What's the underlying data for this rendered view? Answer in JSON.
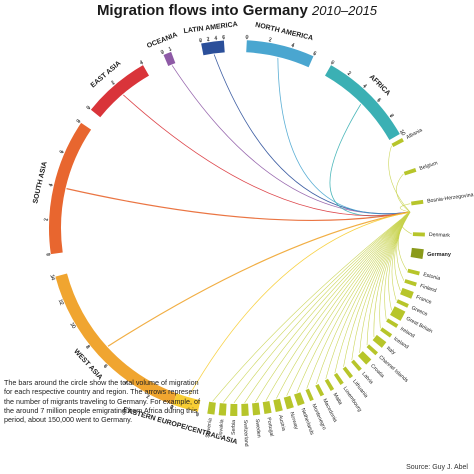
{
  "title": "Migration flows into Germany",
  "subtitle": "2010–2015",
  "note": "The bars around the circle show the total volume of migration for each respective country and region. The arrows represent the number of migrants traveling to Germany. For example, of the around 7 million people emigrating from Africa during this period, about 150,000 went to Germany.",
  "source": "Source: Guy J. Abel",
  "chart_data": {
    "type": "chord",
    "target": "Germany",
    "regions": [
      {
        "name": "OCEANIA",
        "color": "#8e5aa6",
        "ticks": [
          "0",
          "1"
        ]
      },
      {
        "name": "LATIN AMERICA",
        "color": "#2b4f9a",
        "ticks": [
          "0",
          "2",
          "4",
          "6"
        ]
      },
      {
        "name": "NORTH AMERICA",
        "color": "#4aa6d0",
        "ticks": [
          "0",
          "2",
          "4",
          "6"
        ]
      },
      {
        "name": "AFRICA",
        "color": "#3bb0b4",
        "ticks": [
          "0",
          "2",
          "4",
          "6",
          "8",
          "10"
        ]
      },
      {
        "name": "EAST ASIA",
        "color": "#d9343a",
        "ticks": [
          "0",
          "2",
          "4"
        ]
      },
      {
        "name": "SOUTH ASIA",
        "color": "#e8662f",
        "ticks": [
          "0",
          "2",
          "4",
          "6",
          "8"
        ]
      },
      {
        "name": "WEST ASIA",
        "color": "#f0a530",
        "ticks": [
          "0",
          "2",
          "4",
          "6",
          "8",
          "10",
          "12",
          "14"
        ]
      },
      {
        "name": "EASTERN EUROPE/CENTRAL ASIA",
        "color": "#f7cd33",
        "ticks": [
          "0",
          "2"
        ]
      }
    ],
    "countries": [
      "Albania",
      "Belgium",
      "Bosnia-Herzegovina",
      "Denmark",
      "Estonia",
      "Finland",
      "France",
      "Greece",
      "Great Britain",
      "Ireland",
      "Iceland",
      "Italy",
      "Channel Islands",
      "Croatia",
      "Latvia",
      "Lithuania",
      "Luxembourg",
      "Malta",
      "Macedonia",
      "Montenegro",
      "Netherlands",
      "Norway",
      "Austria",
      "Portugal",
      "Sweden",
      "Switzerland",
      "Serbia",
      "Slovakia",
      "Slovenia"
    ]
  }
}
